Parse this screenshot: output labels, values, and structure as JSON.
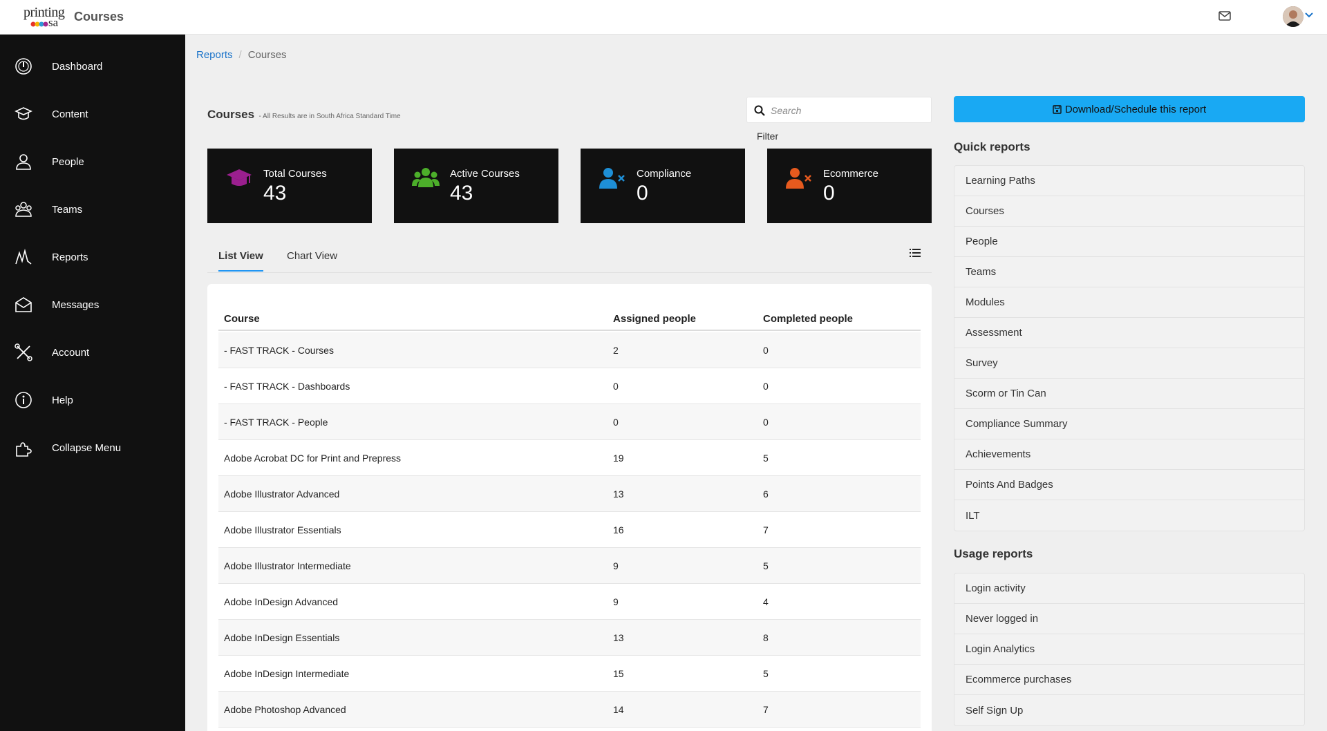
{
  "app": {
    "logo_line1": "printing",
    "logo_line2": "sa",
    "title": "Courses"
  },
  "sidebar": {
    "items": [
      {
        "label": "Dashboard",
        "icon": "dashboard-icon"
      },
      {
        "label": "Content",
        "icon": "graduation-cap-icon"
      },
      {
        "label": "People",
        "icon": "person-icon"
      },
      {
        "label": "Teams",
        "icon": "teams-icon"
      },
      {
        "label": "Reports",
        "icon": "reports-icon"
      },
      {
        "label": "Messages",
        "icon": "envelope-icon"
      },
      {
        "label": "Account",
        "icon": "tools-icon"
      },
      {
        "label": "Help",
        "icon": "info-icon"
      },
      {
        "label": "Collapse Menu",
        "icon": "puzzle-icon"
      }
    ]
  },
  "breadcrumb": {
    "parent": "Reports",
    "separator": "/",
    "current": "Courses"
  },
  "header": {
    "title": "Courses",
    "subtitle": "- All Results are in South Africa Standard Time"
  },
  "search": {
    "placeholder": "Search",
    "value": ""
  },
  "filter_label": "Filter",
  "cards": [
    {
      "title": "Total Courses",
      "value": "43",
      "color": "#9b1f8f",
      "icon": "graduation-cap-icon"
    },
    {
      "title": "Active Courses",
      "value": "43",
      "color": "#4caf2a",
      "icon": "group-icon"
    },
    {
      "title": "Compliance",
      "value": "0",
      "color": "#1e8fd6",
      "icon": "user-x-icon"
    },
    {
      "title": "Ecommerce",
      "value": "0",
      "color": "#e65a1e",
      "icon": "user-x-icon"
    }
  ],
  "tabs": [
    {
      "label": "List View",
      "active": true
    },
    {
      "label": "Chart View",
      "active": false
    }
  ],
  "table": {
    "columns": [
      "Course",
      "Assigned people",
      "Completed people"
    ],
    "rows": [
      [
        "- FAST TRACK - Courses",
        "2",
        "0"
      ],
      [
        "- FAST TRACK - Dashboards",
        "0",
        "0"
      ],
      [
        "- FAST TRACK - People",
        "0",
        "0"
      ],
      [
        "Adobe Acrobat DC for Print and Prepress",
        "19",
        "5"
      ],
      [
        "Adobe Illustrator Advanced",
        "13",
        "6"
      ],
      [
        "Adobe Illustrator Essentials",
        "16",
        "7"
      ],
      [
        "Adobe Illustrator Intermediate",
        "9",
        "5"
      ],
      [
        "Adobe InDesign Advanced",
        "9",
        "4"
      ],
      [
        "Adobe InDesign Essentials",
        "13",
        "8"
      ],
      [
        "Adobe InDesign Intermediate",
        "15",
        "5"
      ],
      [
        "Adobe Photoshop Advanced",
        "14",
        "7"
      ]
    ]
  },
  "download_button": "Download/Schedule this report",
  "quick_reports": {
    "title": "Quick reports",
    "items": [
      "Learning Paths",
      "Courses",
      "People",
      "Teams",
      "Modules",
      "Assessment",
      "Survey",
      "Scorm or Tin Can",
      "Compliance Summary",
      "Achievements",
      "Points And Badges",
      "ILT"
    ]
  },
  "usage_reports": {
    "title": "Usage reports",
    "items": [
      "Login activity",
      "Never logged in",
      "Login Analytics",
      "Ecommerce purchases",
      "Self Sign Up"
    ]
  },
  "colors": {
    "accent": "#19a9f3",
    "link": "#1a73c9",
    "sidebar": "#111111"
  }
}
